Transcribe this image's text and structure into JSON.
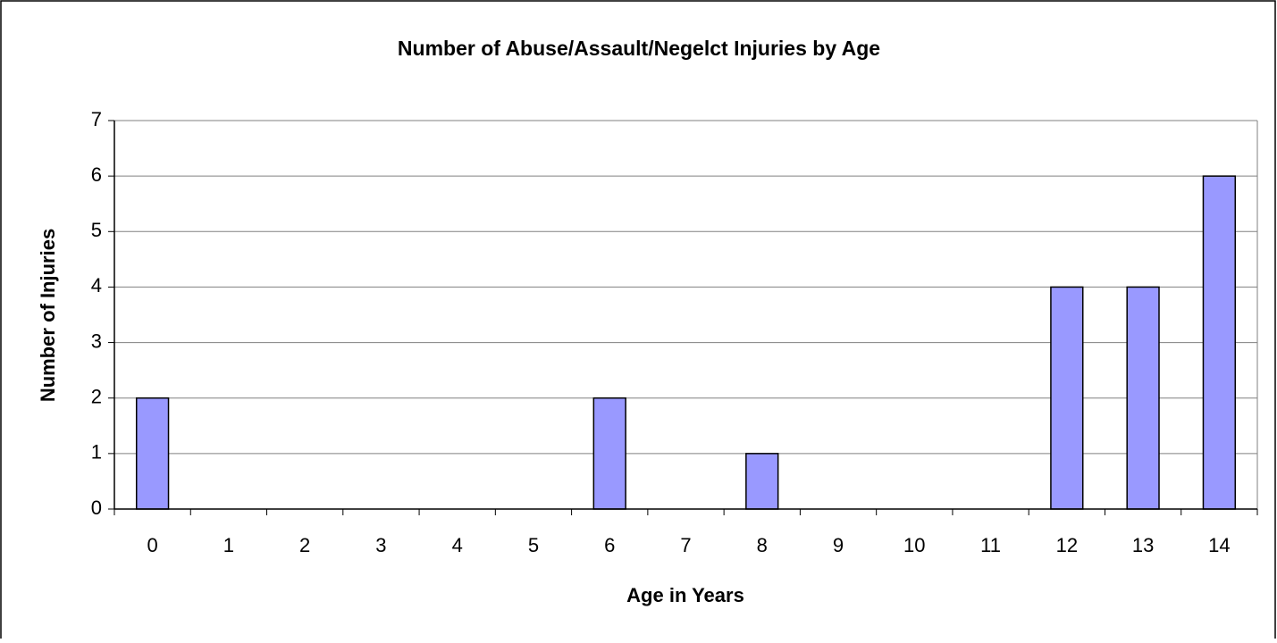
{
  "chart_data": {
    "type": "bar",
    "title": "Number of Abuse/Assault/Negelct Injuries by Age",
    "x_label": "Age in Years",
    "y_label": "Number of Injuries",
    "categories": [
      "0",
      "1",
      "2",
      "3",
      "4",
      "5",
      "6",
      "7",
      "8",
      "9",
      "10",
      "11",
      "12",
      "13",
      "14"
    ],
    "values": [
      2,
      0,
      0,
      0,
      0,
      0,
      2,
      0,
      1,
      0,
      0,
      0,
      4,
      4,
      6
    ],
    "color": "#9999ff",
    "ylim": [
      0,
      7
    ],
    "yticks": [
      0,
      1,
      2,
      3,
      4,
      5,
      6,
      7
    ],
    "grid": true
  }
}
